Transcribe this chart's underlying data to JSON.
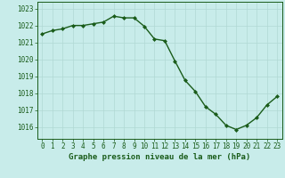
{
  "x": [
    0,
    1,
    2,
    3,
    4,
    5,
    6,
    7,
    8,
    9,
    10,
    11,
    12,
    13,
    14,
    15,
    16,
    17,
    18,
    19,
    20,
    21,
    22,
    23
  ],
  "y": [
    1021.5,
    1021.7,
    1021.8,
    1022.0,
    1022.0,
    1022.1,
    1022.2,
    1022.55,
    1022.45,
    1022.45,
    1021.95,
    1021.2,
    1021.1,
    1019.9,
    1018.75,
    1018.1,
    1017.2,
    1016.75,
    1016.1,
    1015.85,
    1016.1,
    1016.55,
    1017.3,
    1017.8
  ],
  "line_color": "#1a5c1a",
  "marker": "D",
  "marker_size": 2.0,
  "background_color": "#c8ecea",
  "grid_color": "#b0d8d4",
  "xlabel": "Graphe pression niveau de la mer (hPa)",
  "xlabel_fontsize": 6.5,
  "xlabel_color": "#1a5c1a",
  "ylabel_ticks": [
    1016,
    1017,
    1018,
    1019,
    1020,
    1021,
    1022,
    1023
  ],
  "xlim": [
    -0.5,
    23.5
  ],
  "ylim": [
    1015.3,
    1023.4
  ],
  "tick_fontsize": 5.5,
  "tick_color": "#1a5c1a",
  "line_width": 1.0,
  "marker_color": "#1a5c1a"
}
